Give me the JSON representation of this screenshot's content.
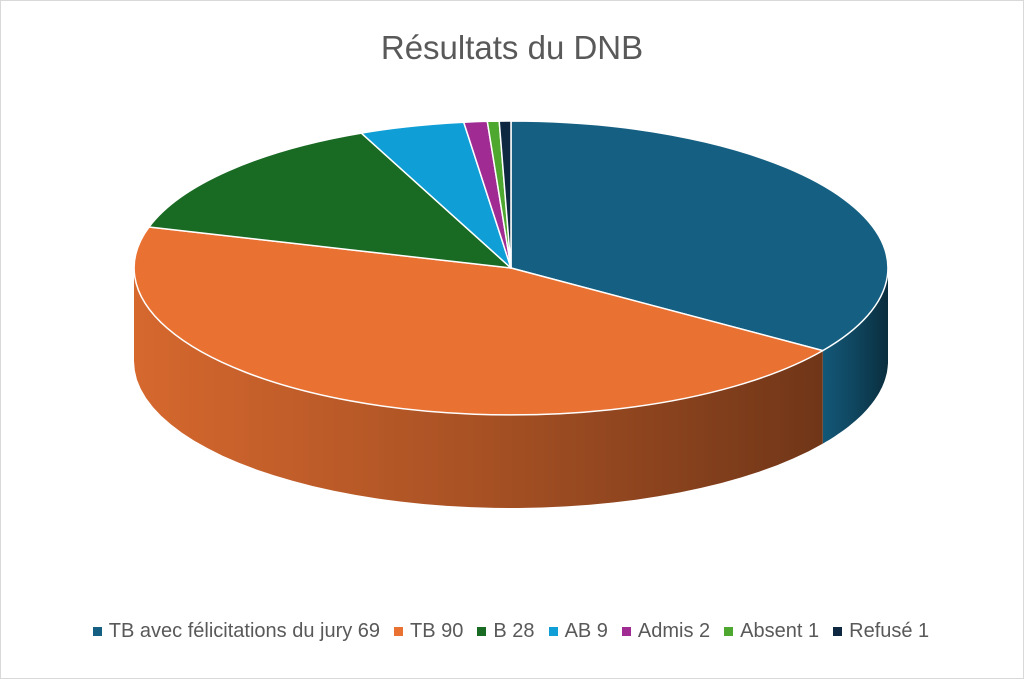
{
  "chart_data": {
    "type": "pie",
    "title": "Résultats du DNB",
    "categories": [
      "TB avec félicitations du jury",
      "TB",
      "B",
      "AB",
      "Admis",
      "Absent",
      "Refusé"
    ],
    "values": [
      69,
      90,
      28,
      9,
      2,
      1,
      1
    ],
    "legend_labels": [
      "TB avec félicitations du jury 69",
      "TB  90",
      "B 28",
      "AB 9",
      "Admis 2",
      "Absent 1",
      "Refusé 1"
    ],
    "colors": [
      "#156082",
      "#E97132",
      "#196B24",
      "#0F9ED5",
      "#A02B93",
      "#4EA72E",
      "#0E2841"
    ],
    "style": "3d",
    "legend_position": "bottom"
  }
}
